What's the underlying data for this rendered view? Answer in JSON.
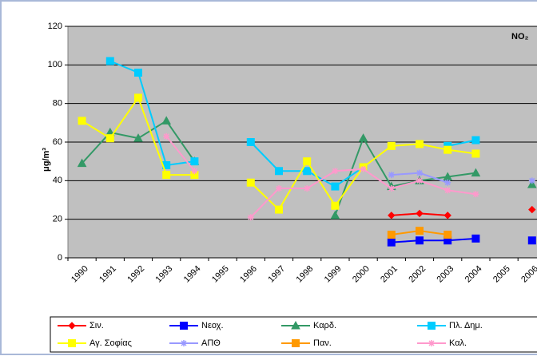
{
  "chart_data": {
    "type": "line",
    "annotation": "NO₂",
    "y_label": "μg/m³",
    "categories": [
      "1990",
      "1991",
      "1992",
      "1993",
      "1994",
      "1995",
      "1996",
      "1997",
      "1998",
      "1999",
      "2000",
      "2001",
      "2002",
      "2003",
      "2004",
      "2005",
      "2006"
    ],
    "ylim": [
      0,
      120
    ],
    "yticks": [
      0,
      20,
      40,
      60,
      80,
      100,
      120
    ],
    "grid": true,
    "legend": "bottom",
    "series": [
      {
        "name": "Σιν.",
        "color": "#ff0000",
        "marker": "diamond",
        "values": [
          null,
          null,
          null,
          null,
          null,
          null,
          null,
          null,
          null,
          null,
          null,
          22,
          23,
          22,
          null,
          null,
          25
        ]
      },
      {
        "name": "Νεοχ.",
        "color": "#0000ff",
        "marker": "square",
        "values": [
          null,
          null,
          null,
          null,
          null,
          null,
          null,
          null,
          null,
          null,
          null,
          8,
          9,
          9,
          10,
          null,
          9
        ]
      },
      {
        "name": "Καρδ.",
        "color": "#339966",
        "marker": "triangle",
        "values": [
          49,
          65,
          62,
          71,
          50,
          null,
          null,
          null,
          null,
          22,
          62,
          37,
          40,
          42,
          44,
          null,
          38
        ]
      },
      {
        "name": "Πλ. Δημ.",
        "color": "#00ccff",
        "marker": "square",
        "values": [
          null,
          102,
          96,
          48,
          50,
          null,
          60,
          45,
          45,
          37,
          47,
          null,
          null,
          58,
          61,
          null,
          null
        ]
      },
      {
        "name": "Αγ. Σοφίας",
        "color": "#ffff00",
        "marker": "square",
        "values": [
          71,
          62,
          83,
          43,
          43,
          null,
          39,
          25,
          50,
          27,
          47,
          58,
          59,
          56,
          54,
          null,
          null
        ]
      },
      {
        "name": "ΑΠΘ",
        "color": "#9999ff",
        "marker": "star",
        "values": [
          null,
          null,
          null,
          null,
          null,
          null,
          null,
          null,
          null,
          null,
          null,
          43,
          44,
          39,
          null,
          null,
          40
        ]
      },
      {
        "name": "Παν.",
        "color": "#ff9900",
        "marker": "square",
        "values": [
          null,
          null,
          null,
          null,
          null,
          null,
          null,
          null,
          null,
          null,
          null,
          12,
          14,
          12,
          null,
          null,
          null
        ]
      },
      {
        "name": "Καλ.",
        "color": "#ff99cc",
        "marker": "star",
        "values": [
          null,
          null,
          null,
          63,
          45,
          null,
          21,
          36,
          36,
          45,
          46,
          36,
          40,
          35,
          33,
          null,
          null
        ]
      }
    ]
  }
}
